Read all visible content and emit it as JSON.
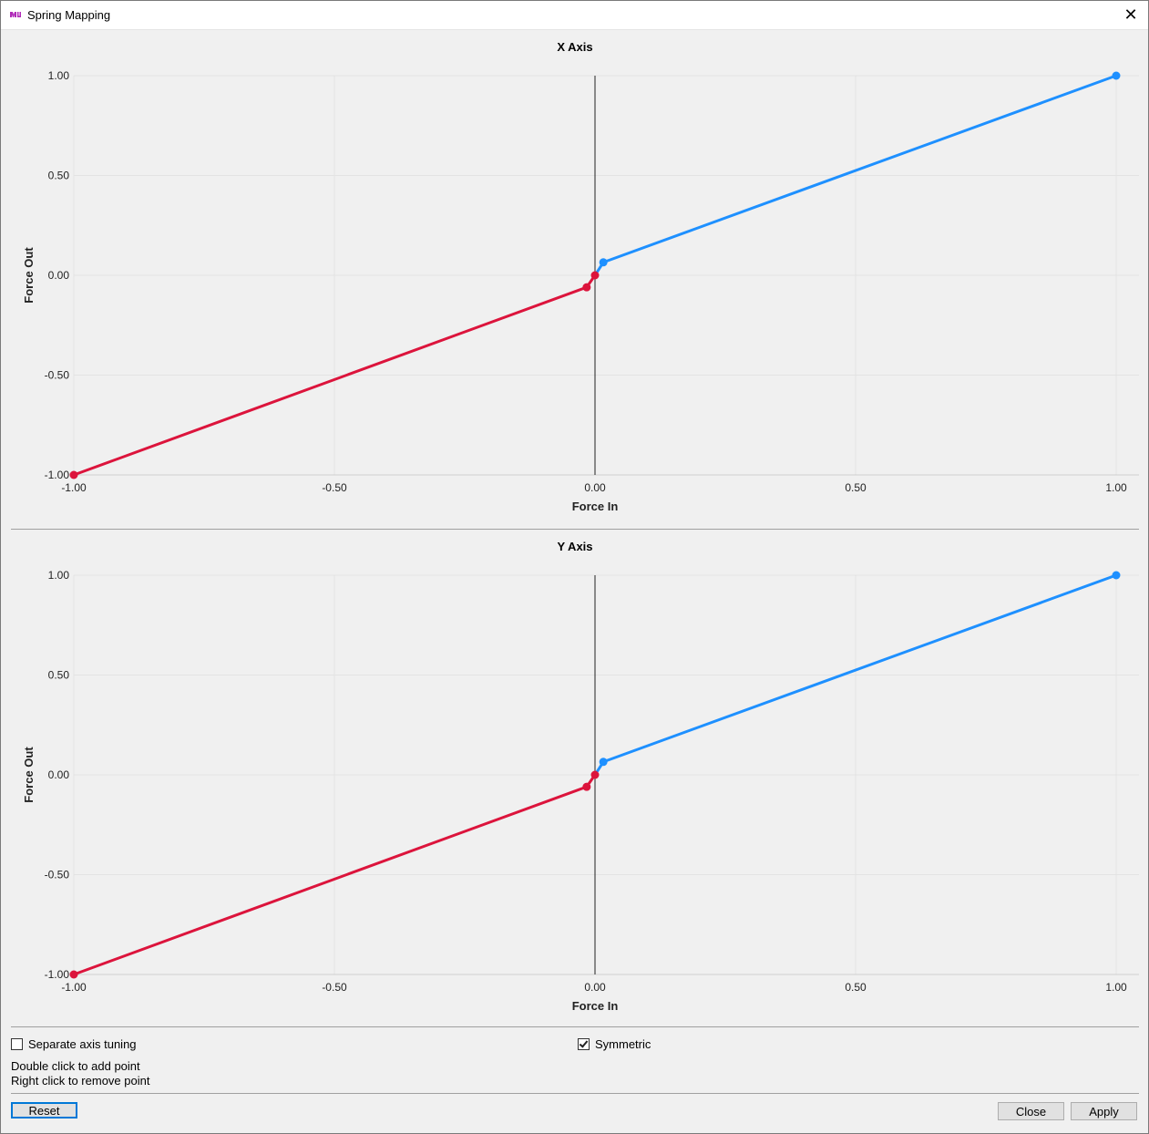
{
  "window": {
    "title": "Spring Mapping",
    "close_glyph": "✕",
    "icon": "app-logo-icon"
  },
  "charts_meta": {
    "xlabel": "Force In",
    "ylabel": "Force Out",
    "x_ticks": [
      "-1.00",
      "-0.50",
      "0.00",
      "0.50",
      "1.00"
    ],
    "y_ticks": [
      "1.00",
      "0.50",
      "0.00",
      "-0.50",
      "-1.00"
    ],
    "colors": {
      "negative": "#dc143c",
      "positive": "#1e90ff",
      "grid": "#e3e3e3",
      "axis": "#222222",
      "plot_bg": "#f0f0f0"
    }
  },
  "chart_data": [
    {
      "type": "line",
      "title": "X Axis",
      "xlabel": "Force In",
      "ylabel": "Force Out",
      "xlim": [
        -1,
        1
      ],
      "ylim": [
        -1,
        1
      ],
      "grid": true,
      "series": [
        {
          "points": [
            [
              -1.0,
              -1.0
            ],
            [
              -0.016,
              -0.06
            ],
            [
              0.0,
              0.0
            ]
          ]
        },
        {
          "points": [
            [
              0.0,
              0.0
            ],
            [
              0.016,
              0.065
            ],
            [
              1.0,
              1.0
            ]
          ]
        }
      ]
    },
    {
      "type": "line",
      "title": "Y Axis",
      "xlabel": "Force In",
      "ylabel": "Force Out",
      "xlim": [
        -1,
        1
      ],
      "ylim": [
        -1,
        1
      ],
      "grid": true,
      "series": [
        {
          "points": [
            [
              -1.0,
              -1.0
            ],
            [
              -0.016,
              -0.06
            ],
            [
              0.0,
              0.0
            ]
          ]
        },
        {
          "points": [
            [
              0.0,
              0.0
            ],
            [
              0.016,
              0.065
            ],
            [
              1.0,
              1.0
            ]
          ]
        }
      ]
    }
  ],
  "options": {
    "separate_axis_label": "Separate axis tuning",
    "separate_axis_checked": false,
    "symmetric_label": "Symmetric",
    "symmetric_checked": true
  },
  "hints": {
    "line1": "Double click to add point",
    "line2": "Right click to remove point"
  },
  "buttons": {
    "reset": "Reset",
    "close": "Close",
    "apply": "Apply"
  }
}
